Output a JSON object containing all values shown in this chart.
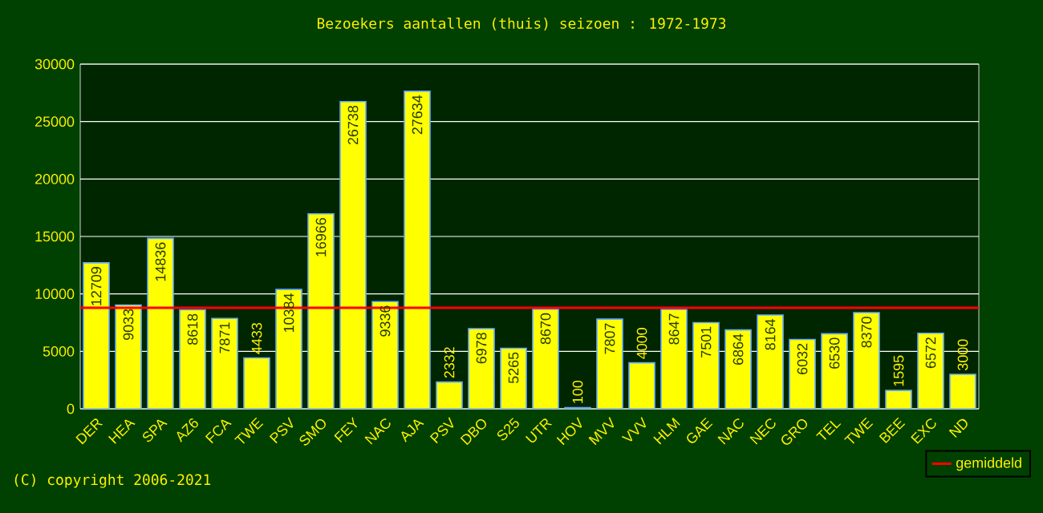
{
  "chart_data": {
    "type": "bar",
    "title": "Bezoekers aantallen (thuis) seizoen : 1972-1973",
    "categories": [
      "DER",
      "HEA",
      "SPA",
      "AZ6",
      "FCA",
      "TWE",
      "PSV",
      "SMO",
      "FEY",
      "NAC",
      "AJA",
      "PSV",
      "DBO",
      "S25",
      "UTR",
      "HOV",
      "MVV",
      "VVV",
      "HLM",
      "GAE",
      "NAC",
      "NEC",
      "GRO",
      "TEL",
      "TWE",
      "BEE",
      "EXC",
      "ND"
    ],
    "values": [
      12709,
      9033,
      14836,
      8618,
      7871,
      4433,
      10384,
      16966,
      26738,
      9336,
      27634,
      2332,
      6978,
      5265,
      8670,
      100,
      7807,
      4000,
      8647,
      7501,
      6864,
      8164,
      6032,
      6530,
      8370,
      1595,
      6572,
      3000
    ],
    "color": "#ffff00",
    "data_labels": true,
    "ylim": [
      0,
      30000
    ],
    "yticks": [
      0,
      5000,
      10000,
      15000,
      20000,
      25000,
      30000
    ],
    "grid": "y",
    "ref_lines": [
      {
        "axis": "y",
        "value": 8790,
        "label": "gemiddeld",
        "color": "#ff0000"
      }
    ],
    "legend": "bottom right",
    "annotations": [
      "(C) copyright 2006-2021"
    ]
  }
}
